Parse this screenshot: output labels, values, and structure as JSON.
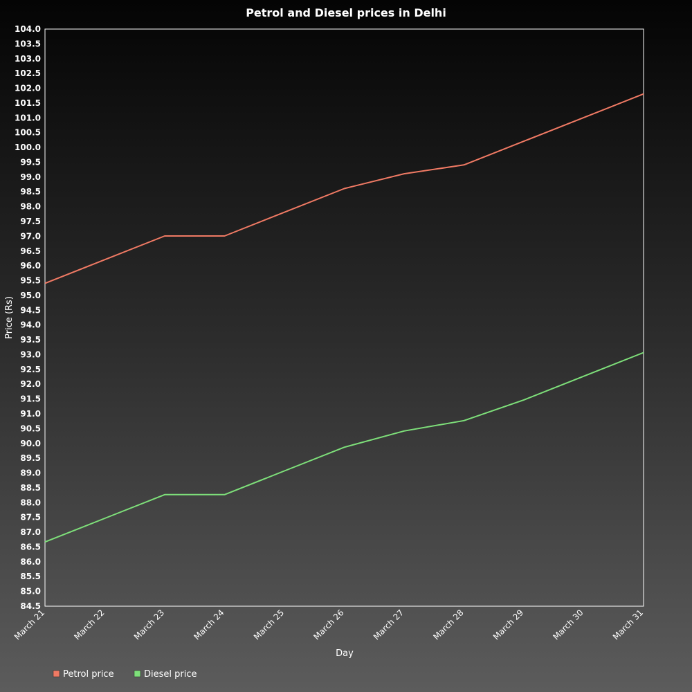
{
  "chart_data": {
    "type": "line",
    "title": "Petrol and Diesel prices in Delhi",
    "xlabel": "Day",
    "ylabel": "Price (Rs)",
    "categories": [
      "March 21",
      "March 22",
      "March 23",
      "March 24",
      "March 25",
      "March 26",
      "March 27",
      "March 28",
      "March 29",
      "March 30",
      "March 31"
    ],
    "ylim": [
      84.5,
      104.0
    ],
    "ytick_step": 0.5,
    "grid": false,
    "legend": "bottom-left",
    "series": [
      {
        "name": "Petrol price",
        "color": "#f07a64",
        "values": [
          95.41,
          96.21,
          97.01,
          97.01,
          97.81,
          98.61,
          99.11,
          99.41,
          100.21,
          101.01,
          101.81
        ]
      },
      {
        "name": "Diesel price",
        "color": "#7ee07a",
        "values": [
          86.67,
          87.47,
          88.27,
          88.27,
          89.07,
          89.87,
          90.42,
          90.77,
          91.47,
          92.27,
          93.07
        ]
      }
    ]
  }
}
